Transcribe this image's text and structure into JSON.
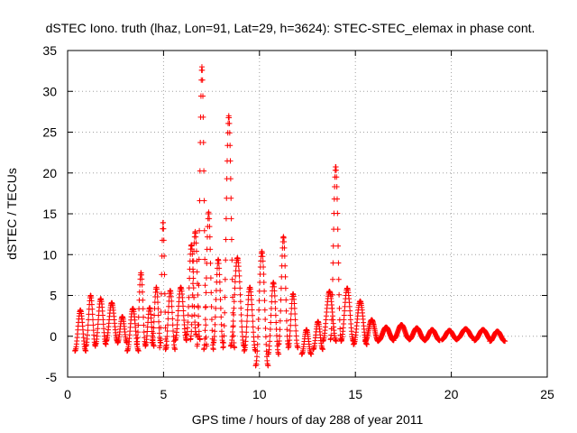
{
  "chart_data": {
    "type": "scatter",
    "title": "dSTEC Iono. truth (lhaz, Lon=91, Lat=29, h=3624): STEC-STEC_elemax in phase cont.",
    "xlabel": "GPS time / hours of day 288 of year 2011",
    "ylabel": "dSTEC  / TECUs",
    "xlim": [
      0,
      25
    ],
    "ylim": [
      -5,
      35
    ],
    "xticks": [
      0,
      5,
      10,
      15,
      20,
      25
    ],
    "yticks": [
      -5,
      0,
      5,
      10,
      15,
      20,
      25,
      30,
      35
    ],
    "grid": true,
    "marker": "+",
    "color": "#ff0000",
    "arcs": [
      {
        "start": 0.38,
        "end": 0.95,
        "min": -1.8,
        "peak": 3.2
      },
      {
        "start": 0.95,
        "end": 1.45,
        "min": -1.2,
        "peak": 5.0
      },
      {
        "start": 1.45,
        "end": 2.0,
        "min": -1.0,
        "peak": 4.6
      },
      {
        "start": 2.0,
        "end": 2.6,
        "min": -0.6,
        "peak": 4.1
      },
      {
        "start": 2.6,
        "end": 3.1,
        "min": -0.8,
        "peak": 2.4
      },
      {
        "start": 3.1,
        "end": 3.7,
        "min": -1.8,
        "peak": 3.4
      },
      {
        "start": 3.6,
        "end": 4.05,
        "min": -1.0,
        "peak": 7.8
      },
      {
        "start": 4.05,
        "end": 4.5,
        "min": -1.2,
        "peak": 3.5
      },
      {
        "start": 4.4,
        "end": 4.85,
        "min": -0.8,
        "peak": 6.0
      },
      {
        "start": 4.8,
        "end": 5.15,
        "min": -1.4,
        "peak": 14.0
      },
      {
        "start": 5.1,
        "end": 5.6,
        "min": -1.6,
        "peak": 5.6
      },
      {
        "start": 5.6,
        "end": 6.2,
        "min": -0.5,
        "peak": 6.0
      },
      {
        "start": 6.2,
        "end": 6.7,
        "min": 0.2,
        "peak": 11.2
      },
      {
        "start": 6.4,
        "end": 6.9,
        "min": -0.4,
        "peak": 12.8
      },
      {
        "start": 6.75,
        "end": 7.25,
        "min": -1.2,
        "peak": 33.0
      },
      {
        "start": 7.1,
        "end": 7.6,
        "min": -1.6,
        "peak": 15.2
      },
      {
        "start": 7.6,
        "end": 8.1,
        "min": -0.8,
        "peak": 9.4
      },
      {
        "start": 8.1,
        "end": 8.7,
        "min": -1.4,
        "peak": 27.0
      },
      {
        "start": 8.5,
        "end": 9.2,
        "min": -1.2,
        "peak": 9.6
      },
      {
        "start": 9.2,
        "end": 9.8,
        "min": -1.8,
        "peak": 6.0
      },
      {
        "start": 9.8,
        "end": 10.45,
        "min": -3.6,
        "peak": 10.4
      },
      {
        "start": 10.45,
        "end": 11.0,
        "min": -2.2,
        "peak": 6.6
      },
      {
        "start": 11.0,
        "end": 11.5,
        "min": -1.0,
        "peak": 12.2
      },
      {
        "start": 11.5,
        "end": 12.0,
        "min": -1.4,
        "peak": 5.2
      },
      {
        "start": 12.2,
        "end": 12.7,
        "min": -2.2,
        "peak": 0.8
      },
      {
        "start": 12.8,
        "end": 13.3,
        "min": -1.6,
        "peak": 1.8
      },
      {
        "start": 13.3,
        "end": 14.0,
        "min": -0.6,
        "peak": 5.5
      },
      {
        "start": 13.7,
        "end": 14.25,
        "min": -0.4,
        "peak": 20.8
      },
      {
        "start": 14.25,
        "end": 14.9,
        "min": -0.6,
        "peak": 5.9
      },
      {
        "start": 14.9,
        "end": 15.6,
        "min": -1.0,
        "peak": 4.3
      },
      {
        "start": 15.5,
        "end": 16.2,
        "min": -0.6,
        "peak": 2.0
      },
      {
        "start": 16.2,
        "end": 17.0,
        "min": -0.5,
        "peak": 1.1
      },
      {
        "start": 17.0,
        "end": 17.8,
        "min": -0.3,
        "peak": 1.4
      },
      {
        "start": 17.8,
        "end": 18.6,
        "min": -0.4,
        "peak": 1.0
      },
      {
        "start": 18.6,
        "end": 19.4,
        "min": -0.5,
        "peak": 0.8
      },
      {
        "start": 19.5,
        "end": 20.3,
        "min": -0.4,
        "peak": 0.7
      },
      {
        "start": 20.3,
        "end": 21.2,
        "min": -0.3,
        "peak": 0.9
      },
      {
        "start": 21.2,
        "end": 22.1,
        "min": -0.5,
        "peak": 0.8
      },
      {
        "start": 22.0,
        "end": 22.8,
        "min": -0.6,
        "peak": 0.6
      }
    ]
  }
}
